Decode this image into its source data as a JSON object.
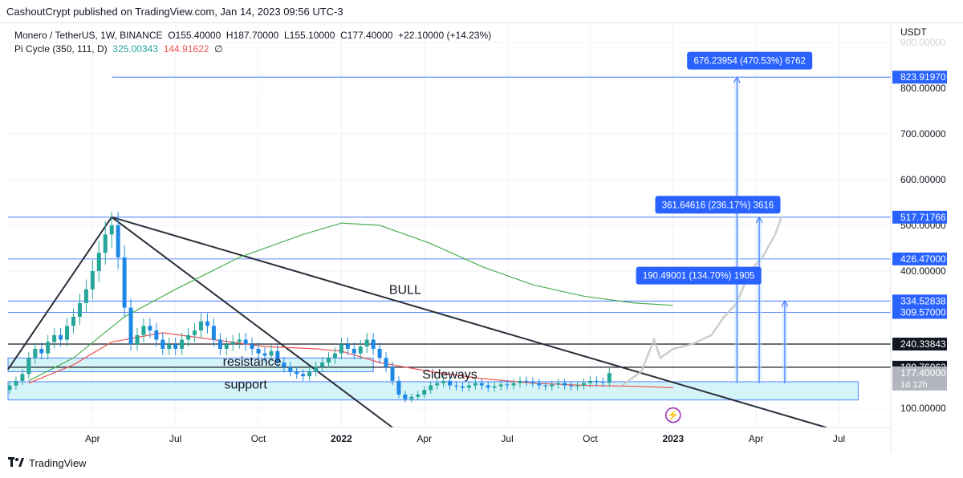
{
  "header": {
    "publisher_line": "CashoutCrypt published on TradingView.com, Jan 14, 2023 09:56 UTC-3"
  },
  "legend": {
    "symbol_line": "Monero / TetherUS, 1W, BINANCE",
    "ohlc": {
      "o": "O155.40000",
      "h": "H187.70000",
      "l": "L155.10000",
      "c": "C177.40000",
      "chg": "+22.10000 (+14.23%)"
    },
    "indicator": {
      "name": "Pi Cycle (350, 111, D)",
      "v1": "325.00343",
      "v2": "144.91622",
      "v3": "∅"
    }
  },
  "footer": {
    "brand": "TradingView"
  },
  "colors": {
    "up": "#26a69a",
    "down": "#1e88e5",
    "ma_long": "#4caf50",
    "ma_short": "#ef5350",
    "level": "#2962ff",
    "zone": "#b2ebf2",
    "projection": "#c8c8c8"
  },
  "chart_data": {
    "type": "candlestick",
    "symbol": "Monero / TetherUS",
    "interval": "1W",
    "exchange": "BINANCE",
    "quote_currency": "USDT",
    "y_axis": {
      "unit": "USDT",
      "ticks": [
        100,
        200,
        300,
        400,
        500,
        600,
        700,
        800,
        900
      ],
      "tick_labels": [
        "100.00000",
        "",
        "",
        "400.00000",
        "500.00000",
        "600.00000",
        "700.00000",
        "800.00000",
        "900.00000"
      ],
      "ylim": [
        58,
        940
      ]
    },
    "x_axis": {
      "tick_labels": [
        "Apr",
        "Jul",
        "Oct",
        "2022",
        "Apr",
        "Jul",
        "Oct",
        "2023",
        "Apr",
        "Jul"
      ]
    },
    "price_labels": [
      {
        "value": 823.9197,
        "text": "823.91970",
        "style": "blue"
      },
      {
        "value": 517.71766,
        "text": "517.71766",
        "style": "blue"
      },
      {
        "value": 426.47,
        "text": "426.47000",
        "style": "blue"
      },
      {
        "value": 334.52838,
        "text": "334.52838",
        "style": "blue"
      },
      {
        "value": 309.57,
        "text": "309.57000",
        "style": "blue"
      },
      {
        "value": 240.33843,
        "text": "240.33843",
        "style": "black"
      },
      {
        "value": 189.76062,
        "text": "189.76062",
        "style": "black"
      },
      {
        "value": 177.4,
        "text": "177.40000",
        "style": "grey",
        "sub": "1d 12h"
      }
    ],
    "annotations": [
      {
        "text": "BULL"
      },
      {
        "text": "resistance"
      },
      {
        "text": "support"
      },
      {
        "text": "Sideways"
      }
    ],
    "measure_labels": [
      {
        "text": "676.23954 (470.53%) 6762",
        "target": 823.9197
      },
      {
        "text": "361.64616 (236.17%) 3616",
        "target": 517.71766
      },
      {
        "text": "190.49001 (134.70%) 1905",
        "target": 334.52838
      }
    ],
    "series": [
      {
        "name": "Pi Cycle 350",
        "values": [
          150,
          210,
          300,
          380,
          440,
          480,
          505,
          500,
          460,
          420,
          380,
          350,
          335,
          325
        ]
      },
      {
        "name": "Pi Cycle 111",
        "values": [
          150,
          200,
          250,
          260,
          240,
          230,
          240,
          220,
          190,
          170,
          155,
          150,
          148,
          145
        ]
      }
    ],
    "ohlc": {
      "open": "155.40000",
      "high": "187.70000",
      "low": "155.10000",
      "close": "177.40000",
      "change": "+22.10000",
      "change_pct": "+14.23%"
    }
  }
}
